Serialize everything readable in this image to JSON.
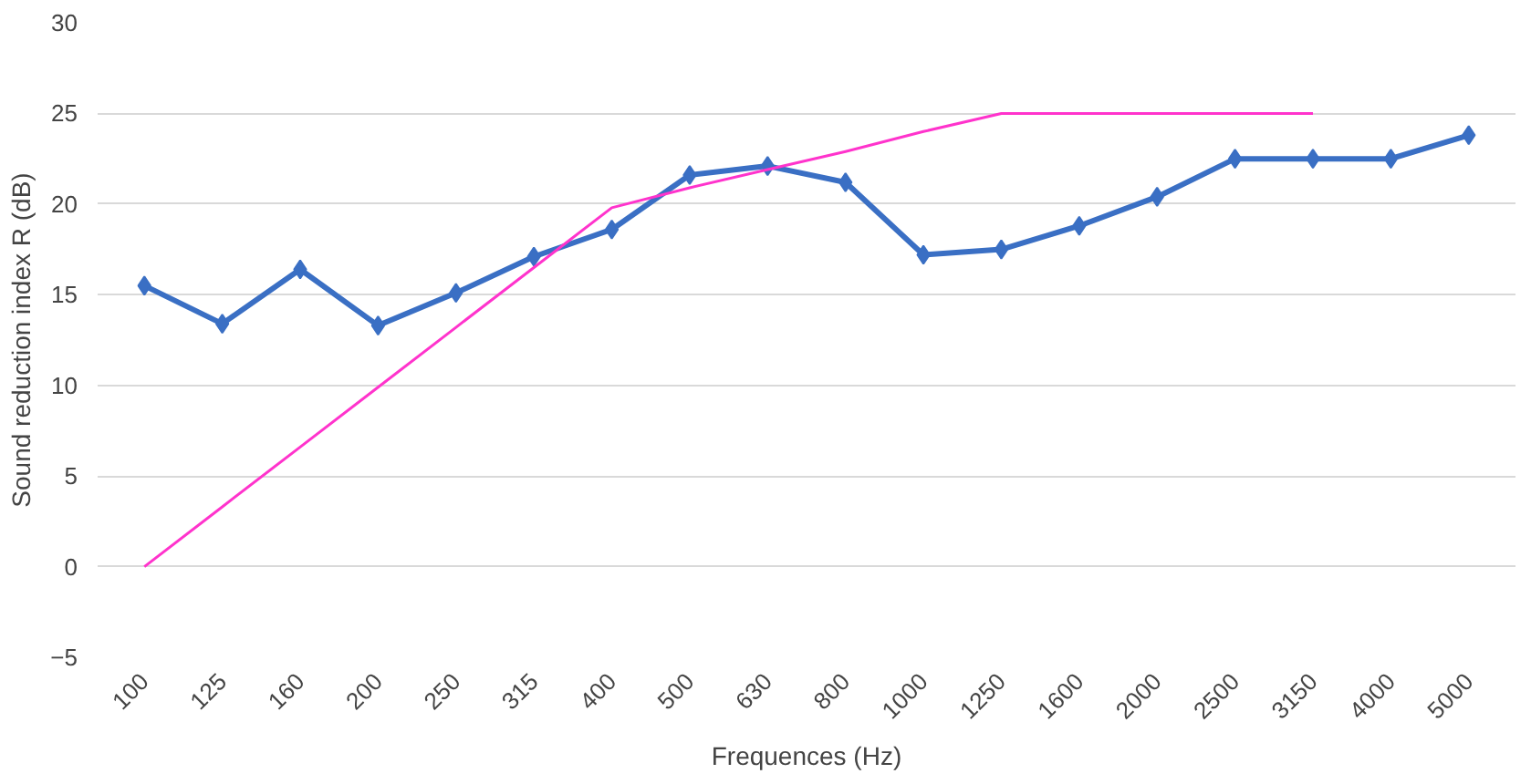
{
  "chart_data": {
    "type": "line",
    "xlabel": "Frequences (Hz)",
    "ylabel": "Sound reduction index R (dB)",
    "categories": [
      "100",
      "125",
      "160",
      "200",
      "250",
      "315",
      "400",
      "500",
      "630",
      "800",
      "1000",
      "1250",
      "1600",
      "2000",
      "2500",
      "3150",
      "4000",
      "5000"
    ],
    "series": [
      {
        "color": "#3a6fc4",
        "marker": "diamond",
        "values": [
          15.5,
          13.4,
          16.4,
          13.3,
          15.1,
          17.1,
          18.6,
          21.6,
          22.1,
          21.2,
          17.2,
          17.5,
          18.8,
          20.4,
          22.5,
          22.5,
          22.5,
          23.8
        ]
      },
      {
        "color": "#ff33cc",
        "marker": "none",
        "values": [
          0,
          3.3,
          6.6,
          9.9,
          13.2,
          16.5,
          19.8,
          20.9,
          21.9,
          22.9,
          24,
          25,
          25,
          25,
          25,
          25,
          null,
          null
        ]
      }
    ],
    "ylim": [
      -5,
      30
    ],
    "yticks": [
      -5,
      0,
      5,
      10,
      15,
      20,
      25,
      30
    ],
    "grid": "y"
  }
}
